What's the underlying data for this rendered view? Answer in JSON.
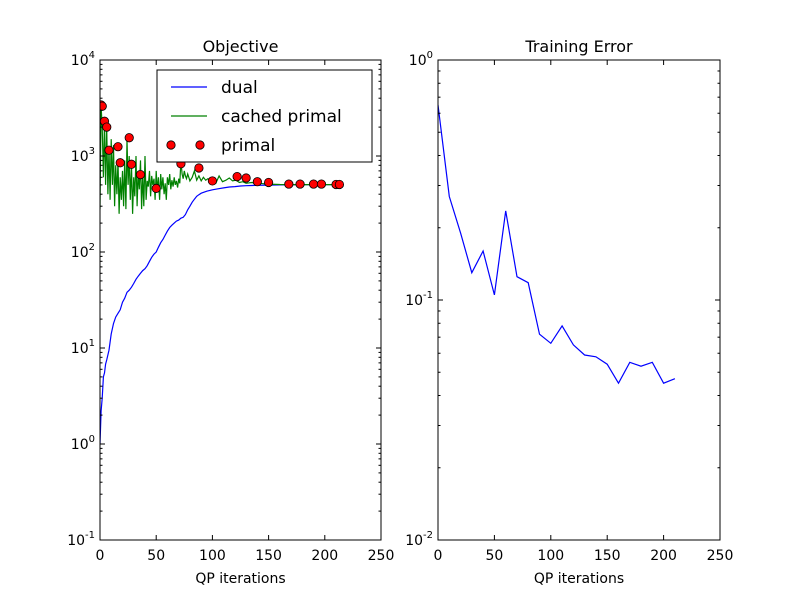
{
  "chart_data": [
    {
      "type": "line",
      "title": "Objective",
      "xlabel": "QP iterations",
      "ylabel": "",
      "xlim": [
        0,
        250
      ],
      "ylim": [
        0.1,
        10000
      ],
      "yscale": "log",
      "xticks": [
        0,
        50,
        100,
        150,
        200,
        250
      ],
      "yticks": [
        {
          "value": 0.1,
          "base": "10",
          "exp": "-1"
        },
        {
          "value": 1,
          "base": "10",
          "exp": "0"
        },
        {
          "value": 10,
          "base": "10",
          "exp": "1"
        },
        {
          "value": 100,
          "base": "10",
          "exp": "2"
        },
        {
          "value": 1000,
          "base": "10",
          "exp": "3"
        },
        {
          "value": 10000,
          "base": "10",
          "exp": "4"
        }
      ],
      "legend_position": "top-right",
      "series": [
        {
          "name": "dual",
          "kind": "line",
          "color": "#0000ff",
          "x": [
            0,
            1,
            2,
            3,
            4,
            5,
            6,
            8,
            10,
            12,
            14,
            16,
            18,
            20,
            22,
            24,
            26,
            28,
            30,
            32,
            34,
            36,
            38,
            40,
            42,
            44,
            46,
            48,
            50,
            52,
            54,
            56,
            58,
            60,
            62,
            64,
            66,
            68,
            70,
            72,
            74,
            76,
            78,
            80,
            82,
            84,
            86,
            88,
            90,
            95,
            100,
            105,
            110,
            115,
            120,
            125,
            130,
            135,
            140,
            150,
            160,
            170,
            180,
            190,
            200,
            210,
            213
          ],
          "y": [
            1.0,
            2.2,
            3.0,
            5.0,
            5.5,
            6.8,
            7.5,
            9.5,
            14,
            18,
            21,
            23,
            25,
            30,
            33,
            38,
            40,
            43,
            47,
            52,
            56,
            60,
            64,
            67,
            72,
            80,
            88,
            95,
            100,
            112,
            125,
            135,
            150,
            165,
            180,
            190,
            200,
            210,
            215,
            225,
            230,
            245,
            275,
            300,
            330,
            355,
            380,
            395,
            410,
            430,
            445,
            455,
            465,
            475,
            480,
            487,
            490,
            493,
            495,
            498,
            500,
            501,
            502,
            502,
            503,
            503,
            503
          ]
        },
        {
          "name": "cached primal",
          "kind": "line",
          "color": "#008000",
          "x": [
            0,
            1,
            2,
            3,
            4,
            5,
            6,
            7,
            8,
            9,
            10,
            11,
            12,
            13,
            14,
            15,
            16,
            17,
            18,
            19,
            20,
            21,
            22,
            23,
            24,
            25,
            26,
            27,
            28,
            29,
            30,
            31,
            32,
            33,
            34,
            35,
            36,
            37,
            38,
            39,
            40,
            41,
            42,
            43,
            44,
            45,
            46,
            47,
            48,
            49,
            50,
            51,
            52,
            53,
            54,
            55,
            56,
            57,
            58,
            59,
            60,
            61,
            62,
            63,
            64,
            65,
            66,
            67,
            68,
            69,
            70,
            71,
            72,
            73,
            74,
            75,
            76,
            77,
            78,
            79,
            80,
            82,
            84,
            86,
            88,
            90,
            92,
            94,
            96,
            98,
            100,
            103,
            106,
            109,
            112,
            115,
            118,
            121,
            124,
            127,
            130,
            135,
            140,
            145,
            150,
            160,
            170,
            180,
            190,
            200,
            213
          ],
          "y": [
            280,
            3300,
            2000,
            600,
            2300,
            500,
            2000,
            400,
            1200,
            350,
            1500,
            500,
            1300,
            300,
            800,
            400,
            900,
            250,
            600,
            350,
            700,
            300,
            900,
            280,
            1500,
            500,
            1000,
            350,
            800,
            250,
            600,
            380,
            1000,
            300,
            700,
            450,
            900,
            280,
            650,
            300,
            1000,
            350,
            550,
            480,
            700,
            380,
            620,
            500,
            580,
            350,
            700,
            430,
            600,
            350,
            650,
            450,
            600,
            400,
            520,
            350,
            600,
            500,
            650,
            450,
            560,
            480,
            600,
            500,
            550,
            470,
            580,
            520,
            900,
            650,
            580,
            700,
            620,
            580,
            650,
            600,
            550,
            600,
            700,
            560,
            620,
            550,
            600,
            560,
            580,
            560,
            540,
            520,
            620,
            540,
            560,
            590,
            550,
            560,
            530,
            540,
            520,
            530,
            520,
            515,
            510,
            505,
            503,
            503,
            503,
            503,
            503
          ]
        },
        {
          "name": "primal",
          "kind": "markers",
          "color": "#ff0000",
          "x": [
            1,
            2,
            4,
            6,
            8,
            16,
            18,
            26,
            28,
            36,
            50,
            72,
            88,
            100,
            122,
            130,
            140,
            150,
            168,
            178,
            190,
            197,
            210,
            213
          ],
          "y": [
            3400,
            3300,
            2300,
            2000,
            1150,
            1250,
            850,
            1550,
            820,
            640,
            460,
            830,
            750,
            550,
            610,
            590,
            540,
            530,
            510,
            510,
            510,
            510,
            505,
            505
          ]
        }
      ]
    },
    {
      "type": "line",
      "title": "Training Error",
      "xlabel": "QP iterations",
      "ylabel": "",
      "xlim": [
        0,
        250
      ],
      "ylim": [
        0.01,
        1
      ],
      "yscale": "log",
      "xticks": [
        0,
        50,
        100,
        150,
        200,
        250
      ],
      "yticks": [
        {
          "value": 0.01,
          "base": "10",
          "exp": "-2"
        },
        {
          "value": 0.1,
          "base": "10",
          "exp": "-1"
        },
        {
          "value": 1,
          "base": "10",
          "exp": "0"
        }
      ],
      "series": [
        {
          "name": "",
          "kind": "line",
          "color": "#0000ff",
          "x": [
            0,
            10,
            20,
            30,
            40,
            50,
            60,
            70,
            80,
            90,
            100,
            110,
            120,
            130,
            140,
            150,
            160,
            170,
            180,
            190,
            200,
            210
          ],
          "y": [
            0.65,
            0.27,
            0.19,
            0.13,
            0.16,
            0.105,
            0.235,
            0.125,
            0.118,
            0.072,
            0.066,
            0.078,
            0.065,
            0.059,
            0.058,
            0.054,
            0.045,
            0.055,
            0.053,
            0.055,
            0.045,
            0.047
          ]
        }
      ]
    }
  ]
}
